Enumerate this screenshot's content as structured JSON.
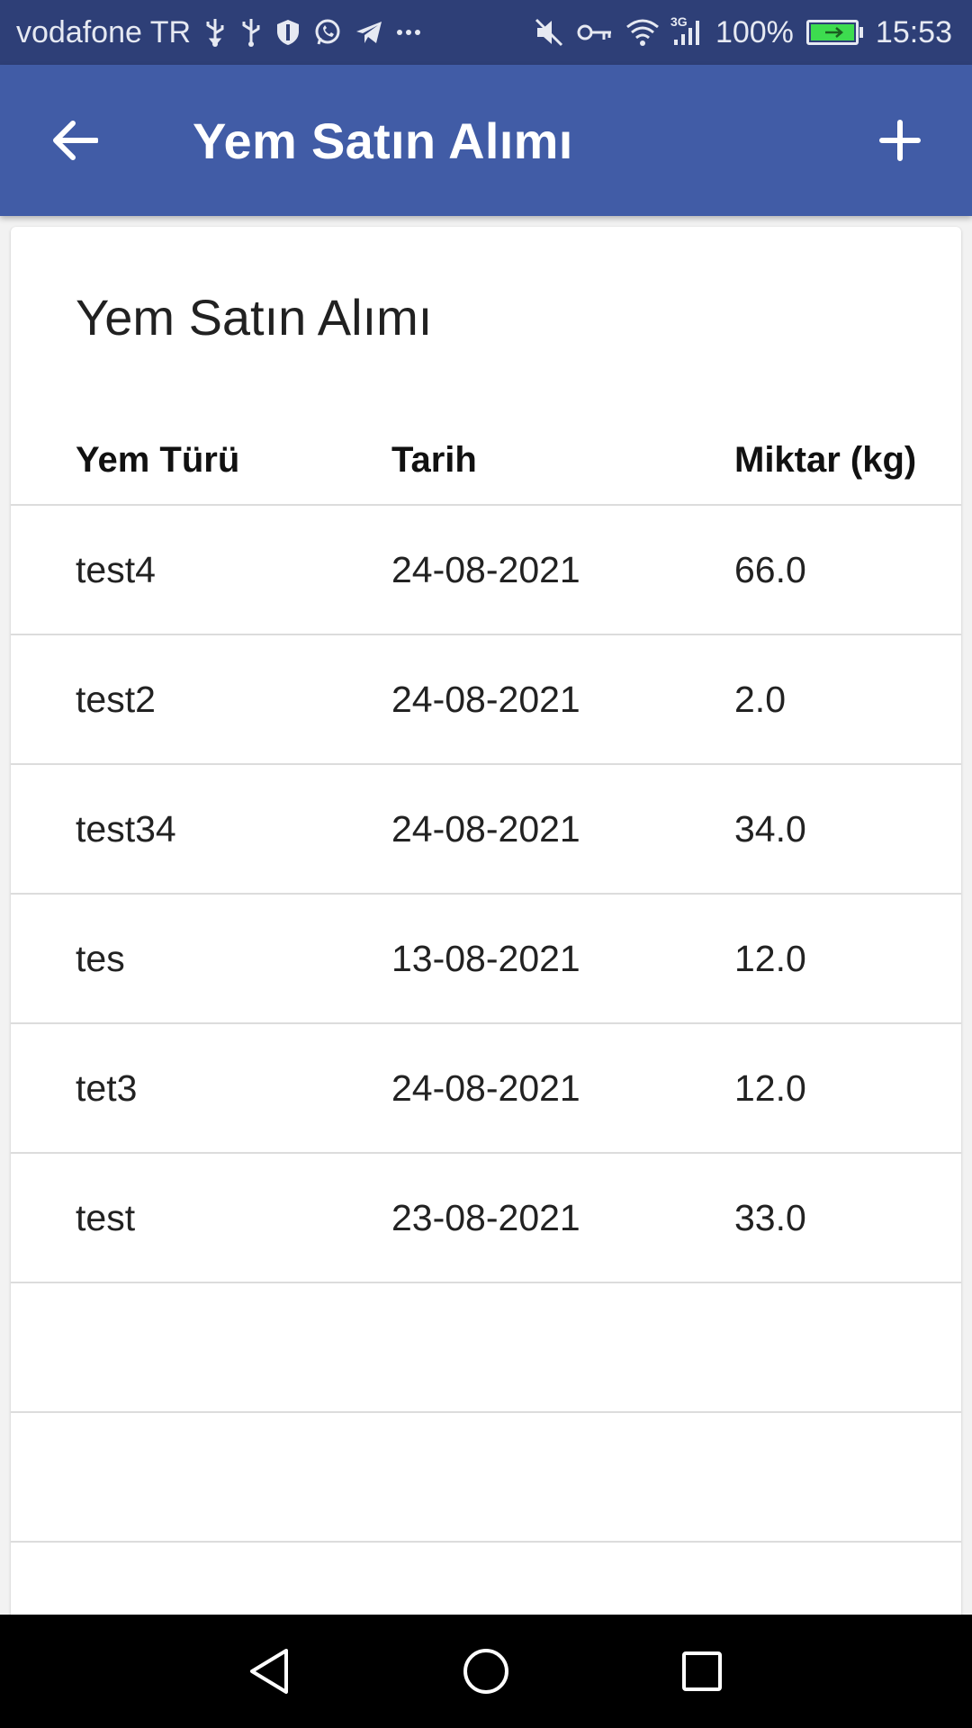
{
  "status_bar": {
    "carrier": "vodafone TR",
    "network_type": "3G",
    "battery_percent": "100%",
    "time": "15:53",
    "left_icons": [
      "usb-icon",
      "usb-icon",
      "shield-icon",
      "whatsapp-icon",
      "telegram-icon",
      "more-icon"
    ],
    "right_icons": [
      "mute-icon",
      "vpn-key-icon",
      "wifi-icon",
      "signal-icon",
      "battery-charging-icon"
    ]
  },
  "app_bar": {
    "title": "Yem Satın Alımı",
    "back_icon": "arrow-left-icon",
    "add_icon": "plus-icon",
    "background": "#415ca6"
  },
  "card": {
    "title": "Yem Satın Alımı",
    "columns": [
      "Yem Türü",
      "Tarih",
      "Miktar (kg)"
    ],
    "rows": [
      [
        "test4",
        "24-08-2021",
        "66.0"
      ],
      [
        "test2",
        "24-08-2021",
        "2.0"
      ],
      [
        "test34",
        "24-08-2021",
        "34.0"
      ],
      [
        "tes",
        "13-08-2021",
        "12.0"
      ],
      [
        "tet3",
        "24-08-2021",
        "12.0"
      ],
      [
        "test",
        "23-08-2021",
        "33.0"
      ],
      [
        "",
        "",
        ""
      ],
      [
        "",
        "",
        ""
      ],
      [
        "",
        "",
        ""
      ]
    ]
  },
  "nav_bar": {
    "icons": [
      "back-triangle-icon",
      "home-circle-icon",
      "recents-square-icon"
    ]
  }
}
